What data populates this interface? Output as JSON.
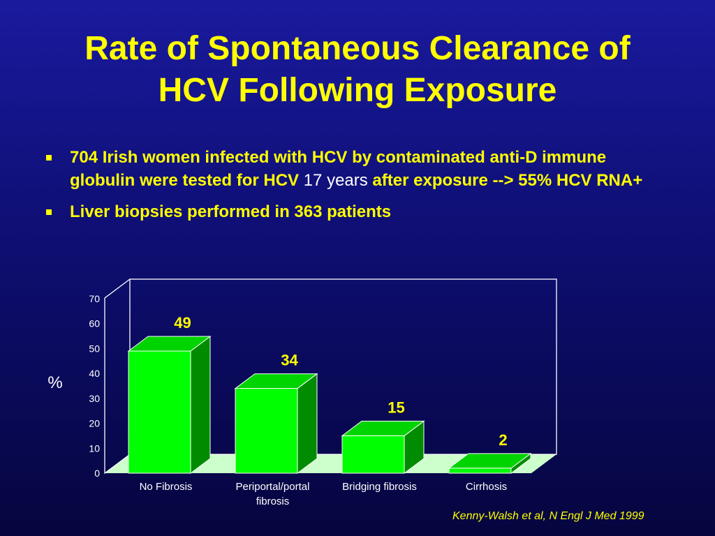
{
  "slide": {
    "title_lines": [
      "Rate of Spontaneous Clearance of",
      "HCV Following Exposure"
    ],
    "bullets": [
      {
        "text_before": "704 Irish women infected with HCV by contaminated anti-D immune globulin were tested for HCV ",
        "highlight": "17 years",
        "text_after": " after exposure --> 55% HCV RNA+"
      },
      {
        "text_before": "Liver biopsies performed in 363 patients",
        "highlight": "",
        "text_after": ""
      }
    ],
    "citation": "Kenny-Walsh et al, N Engl J Med 1999"
  },
  "chart_data": {
    "type": "bar",
    "title": "",
    "ylabel": "%",
    "xlabel": "",
    "categories": [
      [
        "No Fibrosis"
      ],
      [
        "Periportal/portal",
        "fibrosis"
      ],
      [
        "Bridging fibrosis"
      ],
      [
        "Cirrhosis"
      ]
    ],
    "values": [
      49,
      34,
      15,
      2
    ],
    "data_labels": [
      "49",
      "34",
      "15",
      "2"
    ],
    "ylim": [
      0,
      70
    ],
    "yticks": [
      0,
      10,
      20,
      30,
      40,
      50,
      60,
      70
    ],
    "grid": false,
    "legend": "none",
    "style": "3d"
  },
  "colors": {
    "title": "#ffff00",
    "bullet_text": "#ffff00",
    "highlight_text": "#ffffff",
    "bar_front": "#00ff00",
    "bar_top": "#00d400",
    "bar_side": "#008c00",
    "floor": "#ccffcc",
    "axis_text": "#ffffff",
    "data_label": "#ffff00"
  }
}
